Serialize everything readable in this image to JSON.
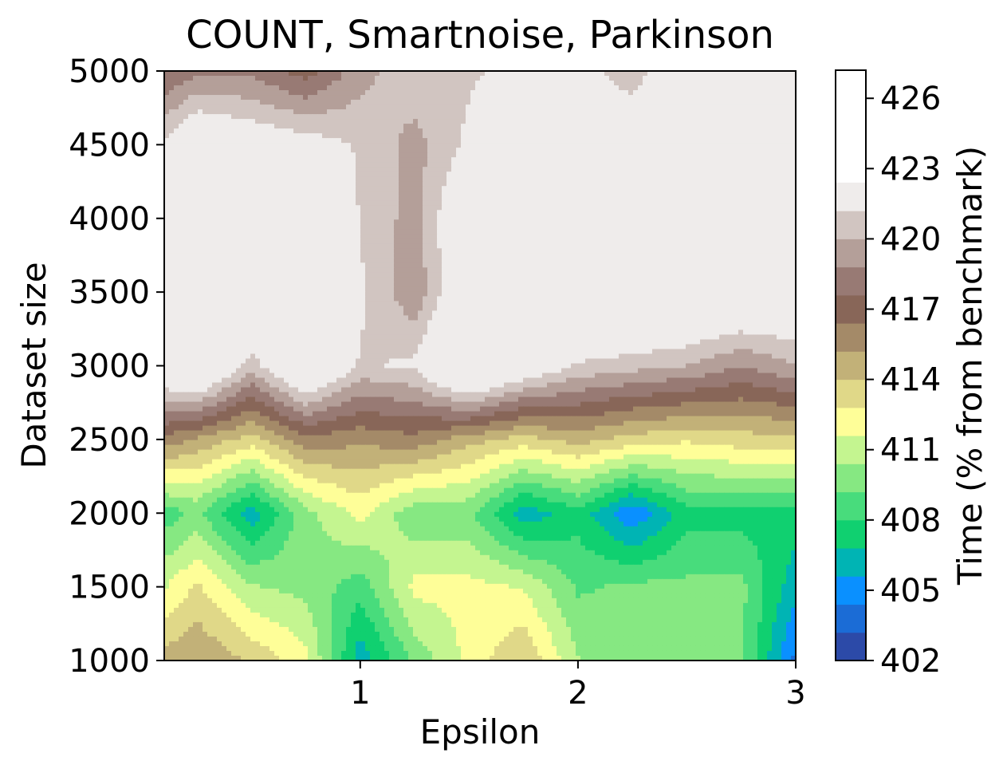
{
  "chart_data": {
    "type": "heatmap",
    "title": "COUNT, Smartnoise, Parkinson",
    "xlabel": "Epsilon",
    "ylabel": "Dataset size",
    "colorbar_label": "Time (% from benchmark)",
    "xlim": [
      0.1,
      3.0
    ],
    "ylim": [
      1000,
      5000
    ],
    "x_ticks": [
      "1",
      "2",
      "3"
    ],
    "x_tick_values": [
      1,
      2,
      3
    ],
    "y_ticks": [
      "1000",
      "1500",
      "2000",
      "2500",
      "3000",
      "3500",
      "4000",
      "4500",
      "5000"
    ],
    "y_tick_values": [
      1000,
      1500,
      2000,
      2500,
      3000,
      3500,
      4000,
      4500,
      5000
    ],
    "colorbar_ticks": [
      "402",
      "405",
      "408",
      "411",
      "414",
      "417",
      "420",
      "423",
      "426"
    ],
    "colorbar_tick_values": [
      402,
      405,
      408,
      411,
      414,
      417,
      420,
      423,
      426
    ],
    "colorbar_range": [
      402,
      427.2
    ],
    "colorbar_levels": [
      402,
      403.2,
      404.4,
      405.6,
      406.8,
      408,
      409.2,
      410.4,
      411.6,
      412.8,
      414,
      415.2,
      416.4,
      417.6,
      418.8,
      420,
      421.2,
      422.4,
      423.6,
      424.8,
      426,
      427.2
    ],
    "colormap": "terrain",
    "colors": [
      "#2c4aa8",
      "#1b6cd6",
      "#0a90ff",
      "#00b4b4",
      "#10d070",
      "#48dc7c",
      "#86e882",
      "#c4f590",
      "#fefe98",
      "#e0d888",
      "#c2b178",
      "#a48a68",
      "#886658",
      "#987a74",
      "#b49f99",
      "#d1c5c1",
      "#efeceb"
    ],
    "x": [
      0.1,
      0.25,
      0.5,
      0.75,
      1.0,
      1.25,
      1.5,
      1.75,
      2.0,
      2.25,
      2.5,
      2.75,
      3.0
    ],
    "y": [
      1000,
      1500,
      2000,
      2500,
      3000,
      3500,
      4000,
      4500,
      5000
    ],
    "z": [
      [
        414.5,
        415.2,
        413.8,
        412.0,
        406.0,
        409.5,
        412.0,
        414.0,
        410.5,
        409.5,
        409.5,
        409.5,
        404.0
      ],
      [
        411.5,
        413.0,
        410.5,
        410.0,
        408.5,
        412.0,
        412.0,
        411.5,
        409.0,
        409.5,
        409.5,
        409.5,
        406.0
      ],
      [
        408.5,
        409.5,
        406.0,
        410.0,
        412.0,
        409.5,
        409.5,
        406.0,
        407.5,
        404.5,
        407.5,
        407.5,
        407.5
      ],
      [
        416.0,
        415.0,
        413.5,
        416.0,
        415.5,
        416.0,
        414.5,
        413.5,
        414.5,
        413.5,
        413.0,
        413.5,
        413.5
      ],
      [
        423.5,
        425.0,
        420.5,
        424.5,
        421.0,
        421.5,
        425.5,
        423.0,
        421.0,
        420.5,
        420.0,
        418.8,
        420.0
      ],
      [
        425.5,
        426.5,
        424.0,
        426.0,
        421.5,
        419.0,
        423.5,
        425.0,
        425.0,
        425.0,
        424.5,
        424.0,
        423.5
      ],
      [
        424.5,
        426.8,
        423.0,
        426.8,
        421.0,
        419.5,
        423.5,
        425.5,
        427.0,
        426.5,
        427.0,
        426.5,
        425.5
      ],
      [
        421.5,
        423.5,
        422.5,
        422.0,
        421.0,
        419.5,
        421.5,
        424.0,
        425.0,
        423.5,
        426.0,
        426.0,
        424.5
      ],
      [
        417.5,
        418.5,
        418.5,
        417.0,
        419.5,
        421.0,
        421.0,
        421.5,
        422.0,
        420.0,
        424.5,
        425.0,
        422.0
      ]
    ]
  }
}
